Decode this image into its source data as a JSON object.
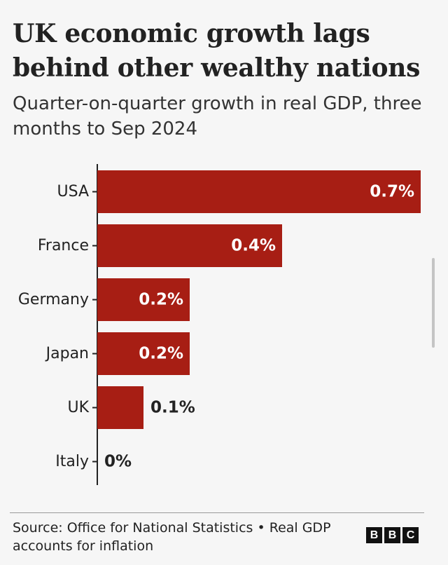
{
  "chart_data": {
    "type": "bar",
    "orientation": "horizontal",
    "title": "UK economic growth lags behind other wealthy nations",
    "subtitle": "Quarter-on-quarter growth in real GDP, three months to Sep 2024",
    "categories": [
      "USA",
      "France",
      "Germany",
      "Japan",
      "UK",
      "Italy"
    ],
    "values": [
      0.7,
      0.4,
      0.2,
      0.2,
      0.1,
      0
    ],
    "value_labels": [
      "0.7%",
      "0.4%",
      "0.2%",
      "0.2%",
      "0.1%",
      "0%"
    ],
    "xlim": [
      0,
      0.7
    ],
    "grid": false,
    "bar_color": "#a71e14"
  },
  "footer": {
    "source": "Source: Office for National Statistics • Real GDP accounts for inflation",
    "logo_letters": [
      "B",
      "B",
      "C"
    ]
  }
}
